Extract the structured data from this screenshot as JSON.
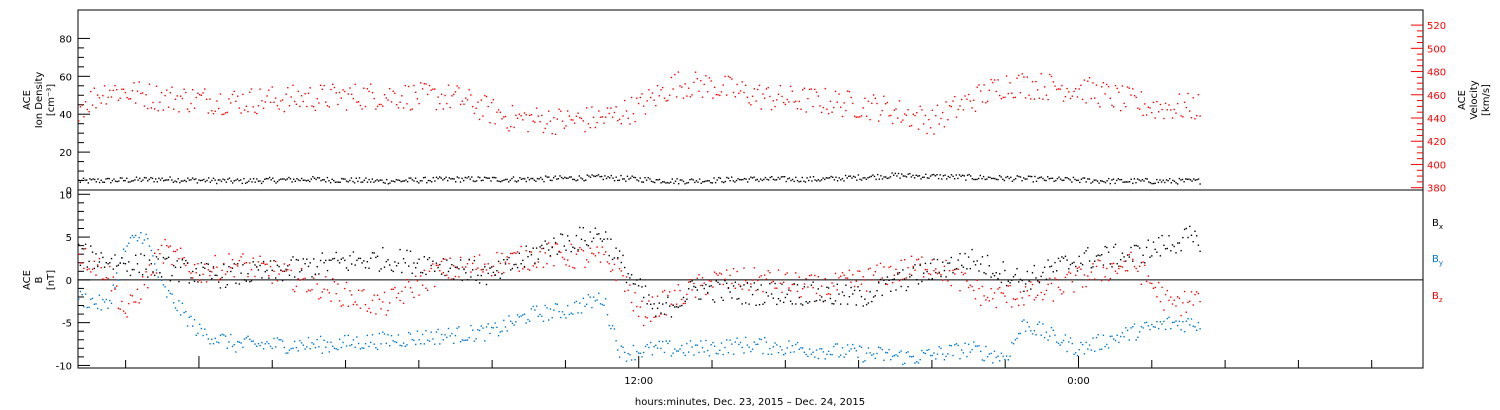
{
  "colors": {
    "density": "#000000",
    "velocity": "#ff0000",
    "bx": "#000000",
    "by": "#0077cc",
    "bz": "#ff0000"
  },
  "chart_data": [
    {
      "panel": "top",
      "type": "scatter",
      "ylabel_lines": [
        "ACE",
        "Ion Density",
        "[cm⁻³]"
      ],
      "ylim": [
        0,
        95
      ],
      "yticks": [
        0,
        20,
        40,
        60,
        80
      ],
      "y2label_lines": [
        "ACE",
        "Velocity",
        "[km/s]"
      ],
      "y2lim": [
        378,
        533
      ],
      "y2ticks": [
        380,
        400,
        420,
        440,
        460,
        480,
        500,
        520
      ],
      "xlim_hours": [
        -3.3,
        33.4
      ],
      "series": [
        {
          "axis": "left",
          "color_key": "density",
          "t_end_hours": 27.3,
          "x": [
            -3.3,
            -1.0,
            1.0,
            3.0,
            5.0,
            7.0,
            9.0,
            11.0,
            13.0,
            15.0,
            17.0,
            19.0,
            21.0,
            23.0,
            25.0,
            27.3
          ],
          "values": [
            5,
            6,
            5,
            6,
            5,
            6,
            6,
            7,
            5,
            6,
            6,
            8,
            7,
            6,
            5,
            5
          ],
          "spread": 1.5
        },
        {
          "axis": "right",
          "color_key": "velocity",
          "t_end_hours": 27.3,
          "x": [
            -3.3,
            -2.5,
            -1.0,
            1.0,
            3.0,
            5.0,
            7.0,
            8.5,
            10.0,
            11.0,
            12.0,
            13.0,
            14.0,
            15.5,
            17.0,
            18.5,
            20.0,
            21.0,
            22.0,
            24.0,
            26.0,
            27.3
          ],
          "values": [
            450,
            465,
            458,
            455,
            458,
            460,
            458,
            440,
            438,
            440,
            450,
            470,
            468,
            458,
            455,
            450,
            438,
            455,
            470,
            466,
            450,
            450
          ],
          "spread": 12
        }
      ]
    },
    {
      "panel": "bottom",
      "type": "scatter",
      "ylabel_lines": [
        "ACE",
        "B",
        "[nT]"
      ],
      "ylim": [
        -10.3,
        10.5
      ],
      "yticks": [
        -10,
        -5,
        0,
        5,
        10
      ],
      "zero_line": true,
      "xlim_hours": [
        -3.3,
        33.4
      ],
      "xtick_labels": [
        "12:00",
        "0:00"
      ],
      "xtick_hours": [
        12,
        24
      ],
      "xlabel": "hours:minutes, Dec. 23, 2015 – Dec. 24, 2015",
      "series": [
        {
          "name": "Bx",
          "color_key": "bx",
          "t_end_hours": 27.3,
          "x": [
            -3.3,
            -2.0,
            -1.0,
            0.5,
            2.0,
            3.5,
            5.0,
            6.5,
            8.0,
            9.5,
            10.5,
            11.0,
            11.5,
            12.5,
            13.5,
            15.0,
            16.5,
            18.0,
            19.5,
            21.0,
            22.5,
            24.0,
            25.5,
            27.0,
            27.3
          ],
          "values": [
            3.0,
            2.0,
            1.5,
            0.5,
            1.0,
            2.0,
            2.5,
            2.0,
            0.5,
            4.0,
            5.0,
            5.5,
            2.0,
            -4.0,
            -1.0,
            -1.5,
            -1.5,
            -2.0,
            0.5,
            2.5,
            0.0,
            2.5,
            3.0,
            5.0,
            4.0
          ],
          "spread": 1.4
        },
        {
          "name": "By",
          "color_key": "by",
          "t_end_hours": 27.3,
          "x": [
            -3.3,
            -2.5,
            -2.0,
            -1.5,
            -1.0,
            0.0,
            1.0,
            2.0,
            3.5,
            5.0,
            6.5,
            8.0,
            9.0,
            10.0,
            11.0,
            11.5,
            12.5,
            13.5,
            15.0,
            16.5,
            18.0,
            19.5,
            21.0,
            22.0,
            22.5,
            24.0,
            25.5,
            26.5,
            27.3
          ],
          "values": [
            -2.0,
            -3.0,
            4.0,
            5.5,
            -1.0,
            -6.0,
            -7.5,
            -7.5,
            -7.5,
            -7.0,
            -6.5,
            -6.0,
            -4.0,
            -3.5,
            -2.0,
            -8.5,
            -8.0,
            -8.0,
            -7.5,
            -8.0,
            -8.5,
            -9.0,
            -8.0,
            -9.0,
            -5.0,
            -8.0,
            -6.0,
            -5.0,
            -5.0
          ],
          "spread": 1.0
        },
        {
          "name": "Bz",
          "color_key": "bz",
          "t_end_hours": 27.3,
          "x": [
            -3.3,
            -2.5,
            -2.0,
            -1.0,
            0.0,
            1.0,
            2.0,
            3.5,
            5.0,
            6.5,
            8.0,
            9.5,
            11.0,
            11.5,
            12.0,
            13.0,
            14.0,
            15.5,
            17.0,
            18.5,
            20.0,
            21.5,
            23.0,
            24.5,
            25.5,
            26.5,
            27.3
          ],
          "values": [
            3.0,
            1.0,
            -4.0,
            3.5,
            1.0,
            2.0,
            1.0,
            -1.0,
            -3.0,
            1.0,
            2.0,
            3.0,
            2.5,
            1.0,
            -4.0,
            -2.0,
            0.0,
            0.0,
            -1.0,
            0.5,
            2.0,
            -2.0,
            -1.5,
            1.0,
            2.0,
            -3.0,
            -2.0
          ],
          "spread": 1.5
        }
      ],
      "legend": [
        "B",
        "B",
        "B"
      ],
      "legend_subscripts": [
        "x",
        "y",
        "z"
      ]
    }
  ]
}
